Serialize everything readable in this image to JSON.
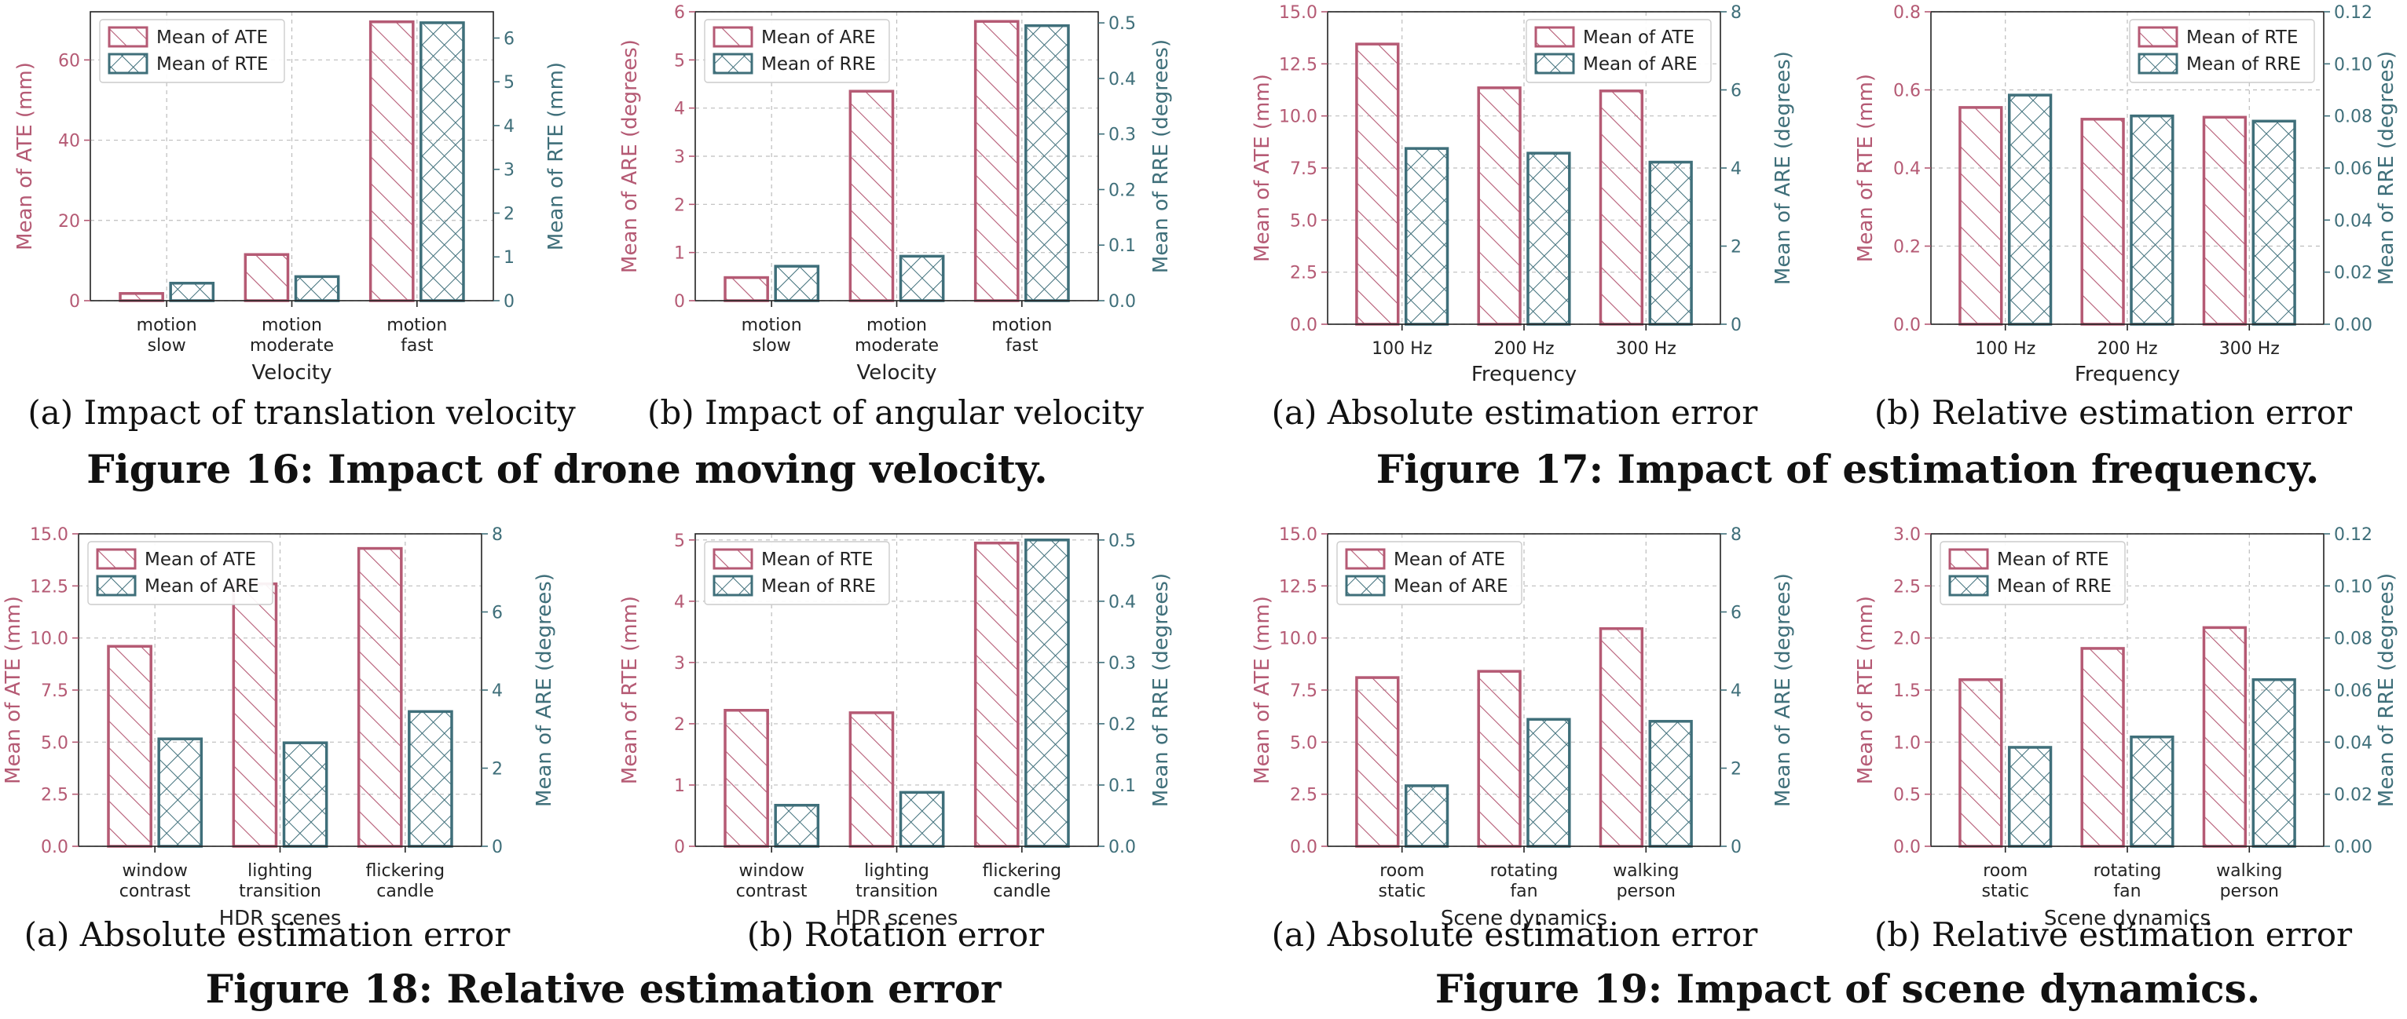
{
  "colors": {
    "left": "#b55a74",
    "right": "#3f6f7a",
    "text": "#111111",
    "grid": "#bdbdbd"
  },
  "figures": [
    {
      "label": "Figure 16: Impact of drone moving velocity."
    },
    {
      "label": "Figure 17: Impact of estimation frequency."
    },
    {
      "label": "Figure 18: Relative estimation error"
    },
    {
      "label": "Figure 19: Impact of scene dynamics."
    }
  ],
  "chart_data": [
    {
      "type": "bar",
      "caption": "(a)  Impact of translation velocity",
      "categories": [
        "motion\nslow",
        "motion\nmoderate",
        "motion\nfast"
      ],
      "xlabel": "Velocity",
      "ylabel_left": "Mean of ATE (mm)",
      "ylim_left": [
        0,
        72
      ],
      "yticks_left": [
        0,
        20,
        40,
        60
      ],
      "ytick_dec_left": 0,
      "ylabel_right": "Mean of RTE (mm)",
      "ylim_right": [
        0,
        6.6
      ],
      "yticks_right": [
        0,
        1,
        2,
        3,
        4,
        5,
        6
      ],
      "ytick_dec_right": 0,
      "series": [
        {
          "name": "Mean of ATE",
          "axis": "left",
          "values": [
            1.8,
            11.5,
            69.5
          ]
        },
        {
          "name": "Mean of RTE",
          "axis": "right",
          "values": [
            0.4,
            0.55,
            6.35
          ]
        }
      ],
      "legend": "top-left",
      "grid": true
    },
    {
      "type": "bar",
      "caption": "(b)  Impact of angular velocity",
      "categories": [
        "motion\nslow",
        "motion\nmoderate",
        "motion\nfast"
      ],
      "xlabel": "Velocity",
      "ylabel_left": "Mean of ARE (degrees)",
      "ylim_left": [
        0,
        6
      ],
      "yticks_left": [
        0,
        1,
        2,
        3,
        4,
        5,
        6
      ],
      "ytick_dec_left": 0,
      "ylabel_right": "Mean of RRE (degrees)",
      "ylim_right": [
        0,
        0.52
      ],
      "yticks_right": [
        0,
        0.1,
        0.2,
        0.3,
        0.4,
        0.5
      ],
      "ytick_dec_right": 1,
      "series": [
        {
          "name": "Mean of ARE",
          "axis": "left",
          "values": [
            0.48,
            4.35,
            5.8
          ]
        },
        {
          "name": "Mean of RRE",
          "axis": "right",
          "values": [
            0.062,
            0.08,
            0.495
          ]
        }
      ],
      "legend": "top-left",
      "grid": true
    },
    {
      "type": "bar",
      "caption": "(a)  Absolute estimation error",
      "categories": [
        "100 Hz",
        "200 Hz",
        "300 Hz"
      ],
      "xlabel": "Frequency",
      "ylabel_left": "Mean of ATE (mm)",
      "ylim_left": [
        0,
        15
      ],
      "yticks_left": [
        0,
        2.5,
        5,
        7.5,
        10,
        12.5,
        15
      ],
      "ytick_dec_left": 1,
      "ylabel_right": "Mean of ARE (degrees)",
      "ylim_right": [
        0,
        8
      ],
      "yticks_right": [
        0,
        2,
        4,
        6,
        8
      ],
      "ytick_dec_right": 0,
      "series": [
        {
          "name": "Mean of ATE",
          "axis": "left",
          "values": [
            13.45,
            11.35,
            11.2
          ]
        },
        {
          "name": "Mean of ARE",
          "axis": "right",
          "values": [
            4.5,
            4.38,
            4.15
          ]
        }
      ],
      "legend": "top-right",
      "grid": true
    },
    {
      "type": "bar",
      "caption": "(b)  Relative estimation error",
      "categories": [
        "100 Hz",
        "200 Hz",
        "300 Hz"
      ],
      "xlabel": "Frequency",
      "ylabel_left": "Mean of RTE (mm)",
      "ylim_left": [
        0,
        0.8
      ],
      "yticks_left": [
        0,
        0.2,
        0.4,
        0.6,
        0.8
      ],
      "ytick_dec_left": 1,
      "ylabel_right": "Mean of RRE (degrees)",
      "ylim_right": [
        0,
        0.12
      ],
      "yticks_right": [
        0,
        0.02,
        0.04,
        0.06,
        0.08,
        0.1,
        0.12
      ],
      "ytick_dec_right": 2,
      "series": [
        {
          "name": "Mean of RTE",
          "axis": "left",
          "values": [
            0.555,
            0.525,
            0.53
          ]
        },
        {
          "name": "Mean of RRE",
          "axis": "right",
          "values": [
            0.088,
            0.08,
            0.078
          ]
        }
      ],
      "legend": "top-right",
      "grid": true
    },
    {
      "type": "bar",
      "caption": "(a)  Absolute estimation error",
      "categories": [
        "window\ncontrast",
        "lighting\ntransition",
        "flickering\ncandle"
      ],
      "xlabel": "HDR scenes",
      "ylabel_left": "Mean of ATE (mm)",
      "ylim_left": [
        0,
        15
      ],
      "yticks_left": [
        0,
        2.5,
        5,
        7.5,
        10,
        12.5,
        15
      ],
      "ytick_dec_left": 1,
      "ylabel_right": "Mean of ARE (degrees)",
      "ylim_right": [
        0,
        8
      ],
      "yticks_right": [
        0,
        2,
        4,
        6,
        8
      ],
      "ytick_dec_right": 0,
      "series": [
        {
          "name": "Mean of ATE",
          "axis": "left",
          "values": [
            9.6,
            12.6,
            14.3
          ]
        },
        {
          "name": "Mean of ARE",
          "axis": "right",
          "values": [
            2.75,
            2.65,
            3.45
          ]
        }
      ],
      "legend": "top-left",
      "grid": true
    },
    {
      "type": "bar",
      "caption": "(b)  Rotation error",
      "categories": [
        "window\ncontrast",
        "lighting\ntransition",
        "flickering\ncandle"
      ],
      "xlabel": "HDR scenes",
      "ylabel_left": "Mean of RTE (mm)",
      "ylim_left": [
        0,
        5.1
      ],
      "yticks_left": [
        0,
        1,
        2,
        3,
        4,
        5
      ],
      "ytick_dec_left": 0,
      "ylabel_right": "Mean of RRE (degrees)",
      "ylim_right": [
        0,
        0.51
      ],
      "yticks_right": [
        0,
        0.1,
        0.2,
        0.3,
        0.4,
        0.5
      ],
      "ytick_dec_right": 1,
      "series": [
        {
          "name": "Mean of RTE",
          "axis": "left",
          "values": [
            2.22,
            2.18,
            4.95
          ]
        },
        {
          "name": "Mean of RRE",
          "axis": "right",
          "values": [
            0.067,
            0.088,
            0.5
          ]
        }
      ],
      "legend": "top-left",
      "grid": true
    },
    {
      "type": "bar",
      "caption": "(a)  Absolute estimation error",
      "categories": [
        "room\nstatic",
        "rotating\nfan",
        "walking\nperson"
      ],
      "xlabel": "Scene dynamics",
      "ylabel_left": "Mean of ATE (mm)",
      "ylim_left": [
        0,
        15
      ],
      "yticks_left": [
        0,
        2.5,
        5,
        7.5,
        10,
        12.5,
        15
      ],
      "ytick_dec_left": 1,
      "ylabel_right": "Mean of ARE (degrees)",
      "ylim_right": [
        0,
        8
      ],
      "yticks_right": [
        0,
        2,
        4,
        6,
        8
      ],
      "ytick_dec_right": 0,
      "series": [
        {
          "name": "Mean of ATE",
          "axis": "left",
          "values": [
            8.1,
            8.4,
            10.45
          ]
        },
        {
          "name": "Mean of ARE",
          "axis": "right",
          "values": [
            1.55,
            3.25,
            3.2
          ]
        }
      ],
      "legend": "top-left",
      "grid": true
    },
    {
      "type": "bar",
      "caption": "(b)  Relative estimation error",
      "categories": [
        "room\nstatic",
        "rotating\nfan",
        "walking\nperson"
      ],
      "xlabel": "Scene dynamics",
      "ylabel_left": "Mean of RTE (mm)",
      "ylim_left": [
        0,
        3
      ],
      "yticks_left": [
        0,
        0.5,
        1,
        1.5,
        2,
        2.5,
        3
      ],
      "ytick_dec_left": 1,
      "ylabel_right": "Mean of RRE (degrees)",
      "ylim_right": [
        0,
        0.12
      ],
      "yticks_right": [
        0,
        0.02,
        0.04,
        0.06,
        0.08,
        0.1,
        0.12
      ],
      "ytick_dec_right": 2,
      "series": [
        {
          "name": "Mean of RTE",
          "axis": "left",
          "values": [
            1.6,
            1.9,
            2.1
          ]
        },
        {
          "name": "Mean of RRE",
          "axis": "right",
          "values": [
            0.038,
            0.042,
            0.064
          ]
        }
      ],
      "legend": "top-left",
      "grid": true
    }
  ]
}
